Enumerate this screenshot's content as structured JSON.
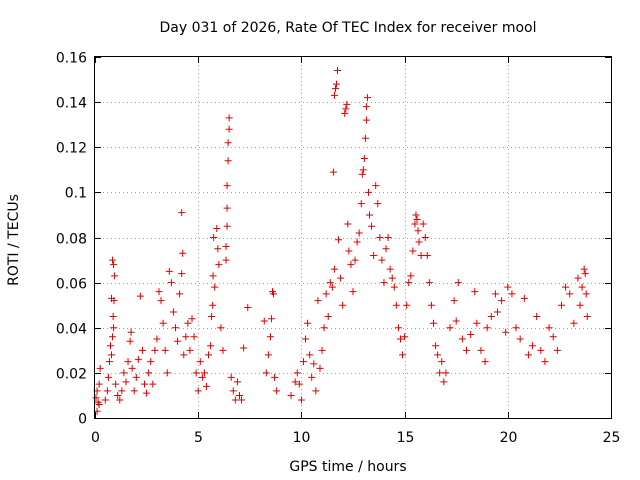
{
  "chart_data": {
    "type": "scatter",
    "title": "Day 031 of 2026, Rate Of TEC Index for receiver mool",
    "xlabel": "GPS time / hours",
    "ylabel": "ROTI / TECUs",
    "xlim": [
      0,
      25
    ],
    "ylim": [
      0,
      0.16
    ],
    "grid": true,
    "x_ticks": [
      0,
      5,
      10,
      15,
      20,
      25
    ],
    "x_tick_labels": [
      "0",
      "5",
      "10",
      "15",
      "20",
      "25"
    ],
    "y_ticks": [
      0,
      0.02,
      0.04,
      0.06,
      0.08,
      0.1,
      0.12,
      0.14,
      0.16
    ],
    "y_tick_labels": [
      "0",
      "0.02",
      "0.04",
      "0.06",
      "0.08",
      "0.1",
      "0.12",
      "0.14",
      "0.16"
    ],
    "marker": "+",
    "color": "#e00000",
    "series": [
      {
        "name": "ROTI",
        "points": [
          [
            0.05,
            0.009
          ],
          [
            0.1,
            0.012
          ],
          [
            0.15,
            0.007
          ],
          [
            0.2,
            0.015
          ],
          [
            0.25,
            0.022
          ],
          [
            0.1,
            0.003
          ],
          [
            0.2,
            0.006
          ],
          [
            0.5,
            0.008
          ],
          [
            0.6,
            0.012
          ],
          [
            0.65,
            0.018
          ],
          [
            0.7,
            0.025
          ],
          [
            0.75,
            0.032
          ],
          [
            0.8,
            0.028
          ],
          [
            0.85,
            0.036
          ],
          [
            0.9,
            0.04
          ],
          [
            0.8,
            0.053
          ],
          [
            0.85,
            0.07
          ],
          [
            0.9,
            0.068
          ],
          [
            0.95,
            0.063
          ],
          [
            0.88,
            0.045
          ],
          [
            0.92,
            0.052
          ],
          [
            1.0,
            0.015
          ],
          [
            1.1,
            0.01
          ],
          [
            1.2,
            0.008
          ],
          [
            1.3,
            0.012
          ],
          [
            1.4,
            0.02
          ],
          [
            1.5,
            0.016
          ],
          [
            1.6,
            0.025
          ],
          [
            1.7,
            0.034
          ],
          [
            1.75,
            0.038
          ],
          [
            1.8,
            0.022
          ],
          [
            1.9,
            0.012
          ],
          [
            2.0,
            0.018
          ],
          [
            2.1,
            0.026
          ],
          [
            2.2,
            0.054
          ],
          [
            2.3,
            0.03
          ],
          [
            2.4,
            0.015
          ],
          [
            2.5,
            0.011
          ],
          [
            2.6,
            0.02
          ],
          [
            2.7,
            0.025
          ],
          [
            2.8,
            0.015
          ],
          [
            2.9,
            0.03
          ],
          [
            3.0,
            0.035
          ],
          [
            3.1,
            0.056
          ],
          [
            3.2,
            0.052
          ],
          [
            3.3,
            0.042
          ],
          [
            3.4,
            0.03
          ],
          [
            3.5,
            0.02
          ],
          [
            3.6,
            0.065
          ],
          [
            3.7,
            0.06
          ],
          [
            3.8,
            0.047
          ],
          [
            3.9,
            0.04
          ],
          [
            4.0,
            0.034
          ],
          [
            4.1,
            0.055
          ],
          [
            4.2,
            0.064
          ],
          [
            4.25,
            0.073
          ],
          [
            4.2,
            0.091
          ],
          [
            4.3,
            0.028
          ],
          [
            4.4,
            0.036
          ],
          [
            4.5,
            0.042
          ],
          [
            4.6,
            0.03
          ],
          [
            4.7,
            0.044
          ],
          [
            4.8,
            0.036
          ],
          [
            4.9,
            0.02
          ],
          [
            5.0,
            0.012
          ],
          [
            5.1,
            0.025
          ],
          [
            5.2,
            0.018
          ],
          [
            5.3,
            0.02
          ],
          [
            5.4,
            0.014
          ],
          [
            5.5,
            0.028
          ],
          [
            5.6,
            0.032
          ],
          [
            5.65,
            0.045
          ],
          [
            5.7,
            0.05
          ],
          [
            5.72,
            0.063
          ],
          [
            5.8,
            0.058
          ],
          [
            5.75,
            0.08
          ],
          [
            5.9,
            0.084
          ],
          [
            5.95,
            0.075
          ],
          [
            6.0,
            0.068
          ],
          [
            6.1,
            0.04
          ],
          [
            6.2,
            0.03
          ],
          [
            6.35,
            0.07
          ],
          [
            6.35,
            0.076
          ],
          [
            6.4,
            0.085
          ],
          [
            6.4,
            0.093
          ],
          [
            6.4,
            0.103
          ],
          [
            6.45,
            0.114
          ],
          [
            6.45,
            0.122
          ],
          [
            6.5,
            0.128
          ],
          [
            6.5,
            0.133
          ],
          [
            6.6,
            0.018
          ],
          [
            6.7,
            0.012
          ],
          [
            6.8,
            0.008
          ],
          [
            6.9,
            0.016
          ],
          [
            7.0,
            0.01
          ],
          [
            7.1,
            0.008
          ],
          [
            7.2,
            0.031
          ],
          [
            7.4,
            0.049
          ],
          [
            8.2,
            0.043
          ],
          [
            8.3,
            0.02
          ],
          [
            8.4,
            0.028
          ],
          [
            8.5,
            0.036
          ],
          [
            8.55,
            0.044
          ],
          [
            8.6,
            0.056
          ],
          [
            8.65,
            0.055
          ],
          [
            8.7,
            0.018
          ],
          [
            8.8,
            0.012
          ],
          [
            9.5,
            0.01
          ],
          [
            9.7,
            0.016
          ],
          [
            9.8,
            0.02
          ],
          [
            9.9,
            0.015
          ],
          [
            10.0,
            0.008
          ],
          [
            10.1,
            0.025
          ],
          [
            10.2,
            0.035
          ],
          [
            10.3,
            0.042
          ],
          [
            10.4,
            0.028
          ],
          [
            10.5,
            0.018
          ],
          [
            10.6,
            0.024
          ],
          [
            10.7,
            0.012
          ],
          [
            10.8,
            0.052
          ],
          [
            10.9,
            0.022
          ],
          [
            11.0,
            0.03
          ],
          [
            11.1,
            0.04
          ],
          [
            11.2,
            0.055
          ],
          [
            11.3,
            0.045
          ],
          [
            11.4,
            0.06
          ],
          [
            11.5,
            0.058
          ],
          [
            11.55,
            0.109
          ],
          [
            11.6,
            0.066
          ],
          [
            11.6,
            0.143
          ],
          [
            11.65,
            0.146
          ],
          [
            11.7,
            0.148
          ],
          [
            11.75,
            0.154
          ],
          [
            11.8,
            0.079
          ],
          [
            11.9,
            0.062
          ],
          [
            12.0,
            0.05
          ],
          [
            12.1,
            0.135
          ],
          [
            12.15,
            0.137
          ],
          [
            12.2,
            0.139
          ],
          [
            12.25,
            0.086
          ],
          [
            12.3,
            0.074
          ],
          [
            12.4,
            0.068
          ],
          [
            12.5,
            0.056
          ],
          [
            12.6,
            0.07
          ],
          [
            12.7,
            0.078
          ],
          [
            12.8,
            0.082
          ],
          [
            12.9,
            0.095
          ],
          [
            12.95,
            0.108
          ],
          [
            13.0,
            0.11
          ],
          [
            13.05,
            0.115
          ],
          [
            13.1,
            0.124
          ],
          [
            13.15,
            0.132
          ],
          [
            13.15,
            0.138
          ],
          [
            13.2,
            0.142
          ],
          [
            13.25,
            0.1
          ],
          [
            13.3,
            0.09
          ],
          [
            13.4,
            0.085
          ],
          [
            13.5,
            0.072
          ],
          [
            13.6,
            0.103
          ],
          [
            13.7,
            0.095
          ],
          [
            13.8,
            0.08
          ],
          [
            13.9,
            0.07
          ],
          [
            14.0,
            0.06
          ],
          [
            14.1,
            0.075
          ],
          [
            14.2,
            0.08
          ],
          [
            14.3,
            0.066
          ],
          [
            14.4,
            0.062
          ],
          [
            14.5,
            0.058
          ],
          [
            14.6,
            0.05
          ],
          [
            14.7,
            0.04
          ],
          [
            14.8,
            0.035
          ],
          [
            14.9,
            0.028
          ],
          [
            15.0,
            0.036
          ],
          [
            15.1,
            0.05
          ],
          [
            15.2,
            0.06
          ],
          [
            15.3,
            0.063
          ],
          [
            15.4,
            0.074
          ],
          [
            15.5,
            0.086
          ],
          [
            15.55,
            0.09
          ],
          [
            15.6,
            0.088
          ],
          [
            15.65,
            0.083
          ],
          [
            15.7,
            0.078
          ],
          [
            15.8,
            0.072
          ],
          [
            15.9,
            0.086
          ],
          [
            16.0,
            0.08
          ],
          [
            16.1,
            0.072
          ],
          [
            16.2,
            0.06
          ],
          [
            16.3,
            0.05
          ],
          [
            16.4,
            0.042
          ],
          [
            16.5,
            0.032
          ],
          [
            16.6,
            0.028
          ],
          [
            16.7,
            0.02
          ],
          [
            16.8,
            0.025
          ],
          [
            16.9,
            0.016
          ],
          [
            17.0,
            0.02
          ],
          [
            17.2,
            0.04
          ],
          [
            17.4,
            0.052
          ],
          [
            17.5,
            0.043
          ],
          [
            17.6,
            0.06
          ],
          [
            17.8,
            0.035
          ],
          [
            18.0,
            0.03
          ],
          [
            18.2,
            0.037
          ],
          [
            18.4,
            0.056
          ],
          [
            18.5,
            0.042
          ],
          [
            18.7,
            0.03
          ],
          [
            18.9,
            0.025
          ],
          [
            19.0,
            0.04
          ],
          [
            19.2,
            0.045
          ],
          [
            19.4,
            0.055
          ],
          [
            19.5,
            0.047
          ],
          [
            19.7,
            0.052
          ],
          [
            19.9,
            0.038
          ],
          [
            20.0,
            0.058
          ],
          [
            20.2,
            0.055
          ],
          [
            20.4,
            0.04
          ],
          [
            20.6,
            0.035
          ],
          [
            20.8,
            0.053
          ],
          [
            21.0,
            0.028
          ],
          [
            21.2,
            0.032
          ],
          [
            21.4,
            0.045
          ],
          [
            21.6,
            0.03
          ],
          [
            21.8,
            0.025
          ],
          [
            22.0,
            0.04
          ],
          [
            22.2,
            0.036
          ],
          [
            22.4,
            0.03
          ],
          [
            22.6,
            0.05
          ],
          [
            22.8,
            0.058
          ],
          [
            23.0,
            0.055
          ],
          [
            23.2,
            0.042
          ],
          [
            23.4,
            0.062
          ],
          [
            23.5,
            0.05
          ],
          [
            23.6,
            0.058
          ],
          [
            23.7,
            0.066
          ],
          [
            23.75,
            0.064
          ],
          [
            23.8,
            0.055
          ],
          [
            23.85,
            0.045
          ]
        ]
      }
    ]
  }
}
